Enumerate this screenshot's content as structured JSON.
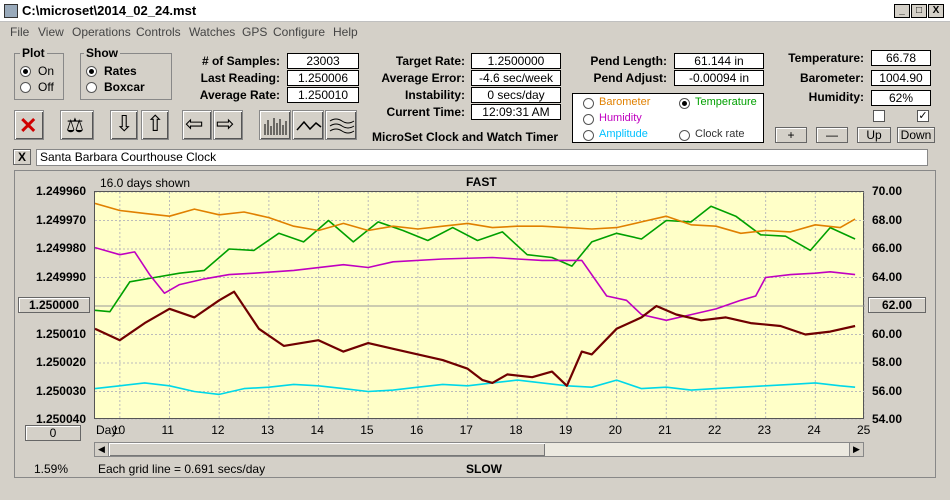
{
  "window": {
    "title": "C:\\microset\\2014_02_24.mst",
    "min": "_",
    "max": "□",
    "close": "X"
  },
  "menu": [
    "File",
    "View",
    "Operations",
    "Controls",
    "Watches",
    "GPS",
    "Configure",
    "Help"
  ],
  "plot_group": {
    "title": "Plot",
    "on": "On",
    "off": "Off"
  },
  "show_group": {
    "title": "Show",
    "rates": "Rates",
    "boxcar": "Boxcar"
  },
  "stats": {
    "samples_label": "# of Samples:",
    "samples": "23003",
    "last_label": "Last Reading:",
    "last": "1.250006",
    "avg_label": "Average Rate:",
    "avg": "1.250010",
    "target_label": "Target Rate:",
    "target": "1.2500000",
    "averr_label": "Average Error:",
    "averr": "-4.6 sec/week",
    "instab_label": "Instability:",
    "instab": "0 secs/day",
    "time_label": "Current Time:",
    "time": "12:09:31 AM",
    "pendlen_label": "Pend Length:",
    "pendlen": "61.144 in",
    "pendadj_label": "Pend Adjust:",
    "pendadj": "-0.00094 in",
    "temp_label": "Temperature:",
    "temp": "66.78",
    "baro_label": "Barometer:",
    "baro": "1004.90",
    "hum_label": "Humidity:",
    "hum": "62%"
  },
  "app_name": "MicroSet Clock and Watch Timer",
  "aux": {
    "barometer": "Barometer",
    "temperature": "Temperature",
    "humidity": "Humidity",
    "amplitude": "Amplitude",
    "clockrate": "Clock rate",
    "barometer_color": "#e08000",
    "temperature_color": "#00a000",
    "humidity_color": "#c000c0",
    "amplitude_color": "#00c0ff"
  },
  "scale_buttons": {
    "plus": "+",
    "minus": "—",
    "up": "Up",
    "down": "Down"
  },
  "toolbar": {
    "close": "✕",
    "balance": "⚖",
    "down": "⇩",
    "up": "⇧",
    "left": "⇦",
    "right": "⇨"
  },
  "clock_name": "Santa Barbara Courthouse Clock",
  "clear_label": "X",
  "graph": {
    "days_shown": "16.0 days shown",
    "fast": "FAST",
    "slow": "SLOW",
    "grid_note": "Each grid line = 0.691 secs/day",
    "pct": "1.59%",
    "center_left": "1.250000",
    "center_right": "62.00",
    "zero_btn": "0",
    "day_label": "Day:"
  },
  "chart_data": {
    "type": "line",
    "x_label": "Day:",
    "xlim": [
      9.5,
      25
    ],
    "xticks": [
      10,
      11,
      12,
      13,
      14,
      15,
      16,
      17,
      18,
      19,
      20,
      21,
      22,
      23,
      24,
      25
    ],
    "ylim_left": [
      1.24996,
      1.25004
    ],
    "yticks_left": [
      "1.249960",
      "1.249970",
      "1.249980",
      "1.249990",
      "1.250000",
      "1.250010",
      "1.250020",
      "1.250030",
      "1.250040"
    ],
    "ylim_right": [
      54,
      70
    ],
    "yticks_right": [
      "70.00",
      "68.00",
      "66.00",
      "64.00",
      "62.00",
      "60.00",
      "58.00",
      "56.00",
      "54.00"
    ],
    "series": [
      {
        "name": "Clock rate",
        "color": "#700000",
        "axis": "left",
        "x": [
          9.5,
          10,
          10.5,
          11,
          11.5,
          12,
          12.3,
          12.8,
          13.3,
          14,
          14.5,
          15,
          15.5,
          16,
          16.5,
          17,
          17.3,
          17.5,
          17.8,
          18.3,
          18.7,
          19,
          19.3,
          19.5,
          20,
          20.5,
          20.8,
          21.2,
          21.7,
          22.2,
          22.7,
          23.3,
          23.8,
          24.3,
          24.8
        ],
        "y": [
          1.250008,
          1.250012,
          1.250006,
          1.250001,
          1.250004,
          1.249998,
          1.249995,
          1.250008,
          1.250014,
          1.250012,
          1.250016,
          1.250013,
          1.250015,
          1.250017,
          1.250019,
          1.250022,
          1.250026,
          1.250027,
          1.250024,
          1.250025,
          1.250023,
          1.250028,
          1.250016,
          1.250017,
          1.250008,
          1.250004,
          1.25,
          1.250003,
          1.250005,
          1.250004,
          1.250006,
          1.250007,
          1.25001,
          1.250009,
          1.250007
        ]
      },
      {
        "name": "Temperature",
        "color": "#00a000",
        "axis": "right",
        "x": [
          9.5,
          9.8,
          10.2,
          10.7,
          11.2,
          11.7,
          12.2,
          12.7,
          13.2,
          13.7,
          14.2,
          14.7,
          15.2,
          15.7,
          16.2,
          16.7,
          17.2,
          17.7,
          18.2,
          18.7,
          19.1,
          19.5,
          20,
          20.5,
          21,
          21.5,
          21.9,
          22.4,
          22.9,
          23.4,
          23.9,
          24.3,
          24.8
        ],
        "y": [
          61.7,
          61.6,
          63.7,
          64.0,
          64.3,
          64.5,
          66.0,
          65.9,
          67.1,
          66.5,
          68.0,
          66.5,
          67.9,
          67.3,
          66.6,
          67.5,
          66.6,
          67.2,
          65.6,
          65.4,
          64.8,
          66.5,
          67.1,
          66.7,
          68.0,
          67.9,
          69.0,
          68.3,
          67.0,
          66.9,
          65.9,
          67.5,
          66.7
        ]
      },
      {
        "name": "Barometer",
        "color": "#e08000",
        "axis": "right",
        "x": [
          9.5,
          10,
          10.5,
          11,
          11.5,
          12,
          12.5,
          13,
          13.5,
          14,
          14.5,
          15,
          15.5,
          16,
          16.5,
          17,
          17.5,
          18,
          18.5,
          19,
          19.5,
          20,
          20.5,
          21,
          21.5,
          22,
          22.5,
          23,
          23.5,
          24,
          24.5,
          24.8
        ],
        "y": [
          69.2,
          68.7,
          68.5,
          68.3,
          68.8,
          68.4,
          68.6,
          68.2,
          67.6,
          67.3,
          67.8,
          67.3,
          67.6,
          67.4,
          67.6,
          67.8,
          67.5,
          67.6,
          67.6,
          67.5,
          67.4,
          67.5,
          67.9,
          68.3,
          67.7,
          67.6,
          67.1,
          67.3,
          67.2,
          67.7,
          67.5,
          68.1
        ]
      },
      {
        "name": "Humidity",
        "color": "#c000c0",
        "axis": "right",
        "x": [
          9.5,
          10,
          10.3,
          10.6,
          10.9,
          11.2,
          11.7,
          12.2,
          12.7,
          13.5,
          14.5,
          15,
          15.5,
          16.5,
          17.5,
          18,
          18.5,
          19.3,
          19.8,
          20.2,
          20.5,
          21,
          21.5,
          22,
          22.5,
          22.8,
          23,
          23.5,
          24,
          24.3,
          24.8
        ],
        "y": [
          66.1,
          65.6,
          65.8,
          64.2,
          62.9,
          63.5,
          63.9,
          64.2,
          64.3,
          64.5,
          64.9,
          64.7,
          65.1,
          65.3,
          65.4,
          65.3,
          65.2,
          65.2,
          62.7,
          62.4,
          61.4,
          61.0,
          61.4,
          61.8,
          62.4,
          62.7,
          64.0,
          64.2,
          64.3,
          64.4,
          64.2
        ]
      },
      {
        "name": "Amplitude",
        "color": "#00d8e8",
        "axis": "right",
        "x": [
          9.5,
          10,
          10.5,
          11,
          11.5,
          12,
          12.5,
          13,
          13.5,
          14,
          14.5,
          15,
          15.5,
          16,
          16.5,
          17,
          17.5,
          18,
          18.5,
          19,
          19.5,
          20,
          20.5,
          21,
          21.5,
          22,
          22.5,
          23,
          23.5,
          24,
          24.5,
          24.8
        ],
        "y": [
          56.2,
          56.4,
          56.6,
          56.4,
          56.0,
          55.8,
          56.2,
          56.3,
          56.5,
          56.4,
          56.2,
          56.0,
          56.1,
          56.3,
          56.5,
          56.4,
          56.6,
          56.8,
          56.6,
          56.4,
          56.3,
          56.8,
          56.2,
          56.3,
          56.1,
          56.2,
          56.3,
          56.4,
          56.5,
          56.6,
          56.4,
          56.3
        ]
      }
    ]
  }
}
